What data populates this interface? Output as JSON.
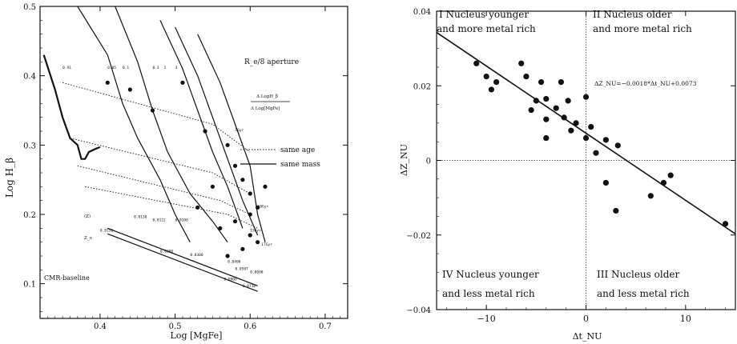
{
  "left_panel": {
    "ylabel": "Log H_β",
    "xlabel": "Log [MgFe]",
    "aperture_label": "R_e/8 aperture",
    "slope_label_top": "Δ LogH_β",
    "slope_label_bottom": "Δ Log[MgFe]",
    "legend": [
      {
        "label": "same age",
        "style": "dotted"
      },
      {
        "label": "same mass",
        "style": "solid"
      }
    ],
    "baseline_label": "CMR-baseline",
    "z_tag": "(Z)",
    "z_symbol": "Z_o",
    "annotations": [
      "0.91",
      "0.05",
      "0.1",
      "0.3",
      "1",
      "3",
      "5Gyr",
      "10Gyr",
      "17Gyr",
      "15Gyr",
      "0.0130",
      "0.0122",
      "0.0150",
      "0.0190",
      "0.0200",
      "0.0300",
      "0.0400",
      "0.0507",
      "0.0600",
      "0.0710",
      "0.0900"
    ]
  },
  "right_panel": {
    "ylabel": "ΔZ_NU",
    "xlabel": "Δt_NU",
    "quadrants": {
      "q1_line1": "I Nucleus younger",
      "q1_line2": "and more metal rich",
      "q2_line1": "II Nucleus older",
      "q2_line2": "and more metal rich",
      "q3_line1": "III Nucleus older",
      "q3_line2": "and less metal rich",
      "q4_line1": "IV Nucleus younger",
      "q4_line2": "and less metal rich"
    },
    "fit_equation": "ΔZ_NU=−0.0018*Δt_NU+0.0073"
  },
  "chart_data": [
    {
      "type": "line",
      "xlabel": "Log [MgFe]",
      "ylabel": "Log H_β",
      "xlim": [
        0.32,
        0.73
      ],
      "ylim": [
        0.05,
        0.5
      ],
      "x_ticks": [
        0.4,
        0.5,
        0.6,
        0.7
      ],
      "y_ticks": [
        0.1,
        0.2,
        0.3,
        0.4,
        0.5
      ],
      "x_tick_labels": [
        "0.4",
        "0.5",
        "0.6",
        "0.7"
      ],
      "y_tick_labels": [
        "0.1",
        "0.2",
        "0.3",
        "0.4",
        "0.5"
      ],
      "grid": false,
      "legend_position": "right",
      "series": [
        {
          "name": "same mass",
          "style": "solid",
          "points": [
            [
              0.37,
              0.5
            ],
            [
              0.41,
              0.43
            ],
            [
              0.43,
              0.36
            ],
            [
              0.45,
              0.31
            ],
            [
              0.48,
              0.25
            ],
            [
              0.5,
              0.2
            ],
            [
              0.52,
              0.16
            ]
          ]
        },
        {
          "name": "same mass",
          "style": "solid",
          "points": [
            [
              0.42,
              0.5
            ],
            [
              0.45,
              0.42
            ],
            [
              0.47,
              0.35
            ],
            [
              0.49,
              0.29
            ],
            [
              0.52,
              0.23
            ],
            [
              0.55,
              0.19
            ],
            [
              0.57,
              0.16
            ]
          ]
        },
        {
          "name": "same mass",
          "style": "solid",
          "points": [
            [
              0.48,
              0.48
            ],
            [
              0.51,
              0.41
            ],
            [
              0.53,
              0.35
            ],
            [
              0.55,
              0.29
            ],
            [
              0.57,
              0.24
            ],
            [
              0.59,
              0.18
            ]
          ]
        },
        {
          "name": "same mass",
          "style": "solid",
          "points": [
            [
              0.5,
              0.47
            ],
            [
              0.53,
              0.4
            ],
            [
              0.55,
              0.34
            ],
            [
              0.57,
              0.28
            ],
            [
              0.59,
              0.22
            ],
            [
              0.61,
              0.17
            ]
          ]
        },
        {
          "name": "same mass",
          "style": "solid",
          "points": [
            [
              0.53,
              0.46
            ],
            [
              0.56,
              0.39
            ],
            [
              0.58,
              0.33
            ],
            [
              0.6,
              0.27
            ],
            [
              0.61,
              0.2
            ],
            [
              0.62,
              0.16
            ]
          ]
        },
        {
          "name": "same age",
          "style": "dotted",
          "points": [
            [
              0.35,
              0.39
            ],
            [
              0.55,
              0.33
            ],
            [
              0.6,
              0.29
            ]
          ]
        },
        {
          "name": "same age",
          "style": "dotted",
          "points": [
            [
              0.36,
              0.31
            ],
            [
              0.55,
              0.26
            ],
            [
              0.6,
              0.23
            ]
          ]
        },
        {
          "name": "same age",
          "style": "dotted",
          "points": [
            [
              0.37,
              0.27
            ],
            [
              0.56,
              0.22
            ],
            [
              0.6,
              0.2
            ]
          ]
        },
        {
          "name": "same age",
          "style": "dotted",
          "points": [
            [
              0.38,
              0.24
            ],
            [
              0.57,
              0.2
            ],
            [
              0.61,
              0.18
            ]
          ]
        },
        {
          "name": "CMR-baseline",
          "style": "solid",
          "points": [
            [
              0.41,
              0.18
            ],
            [
              0.61,
              0.097
            ]
          ]
        },
        {
          "name": "CMR-baseline",
          "style": "solid",
          "points": [
            [
              0.41,
              0.172
            ],
            [
              0.61,
              0.089
            ]
          ]
        },
        {
          "name": "track",
          "style": "thick",
          "points": [
            [
              0.325,
              0.43
            ],
            [
              0.34,
              0.38
            ],
            [
              0.35,
              0.34
            ],
            [
              0.36,
              0.31
            ],
            [
              0.37,
              0.3
            ],
            [
              0.375,
              0.28
            ],
            [
              0.38,
              0.28
            ],
            [
              0.385,
              0.29
            ],
            [
              0.395,
              0.295
            ],
            [
              0.4,
              0.297
            ]
          ]
        }
      ],
      "points": [
        [
          0.41,
          0.39
        ],
        [
          0.44,
          0.38
        ],
        [
          0.47,
          0.35
        ],
        [
          0.51,
          0.39
        ],
        [
          0.54,
          0.32
        ],
        [
          0.57,
          0.3
        ],
        [
          0.58,
          0.27
        ],
        [
          0.59,
          0.25
        ],
        [
          0.6,
          0.23
        ],
        [
          0.61,
          0.21
        ],
        [
          0.58,
          0.19
        ],
        [
          0.6,
          0.17
        ],
        [
          0.59,
          0.15
        ],
        [
          0.57,
          0.14
        ],
        [
          0.55,
          0.24
        ],
        [
          0.53,
          0.21
        ],
        [
          0.56,
          0.18
        ],
        [
          0.61,
          0.16
        ],
        [
          0.6,
          0.2
        ],
        [
          0.62,
          0.24
        ]
      ]
    },
    {
      "type": "scatter",
      "xlabel": "Δt_NU",
      "ylabel": "ΔZ_NU",
      "xlim": [
        -15,
        15
      ],
      "ylim": [
        -0.04,
        0.04
      ],
      "x_ticks": [
        -10,
        0,
        10
      ],
      "y_ticks": [
        -0.04,
        -0.02,
        0,
        0.02,
        0.04
      ],
      "x_tick_labels": [
        "−10",
        "0",
        "10"
      ],
      "y_tick_labels": [
        "−0.04",
        "−0.02",
        "0",
        "0.02",
        "0.04"
      ],
      "grid": false,
      "points": [
        [
          -11,
          0.026
        ],
        [
          -10,
          0.0225
        ],
        [
          -9.5,
          0.019
        ],
        [
          -9,
          0.021
        ],
        [
          -6.5,
          0.026
        ],
        [
          -6,
          0.0225
        ],
        [
          -5.5,
          0.0135
        ],
        [
          -5,
          0.016
        ],
        [
          -4.5,
          0.021
        ],
        [
          -4,
          0.0165
        ],
        [
          -4,
          0.011
        ],
        [
          -4,
          0.006
        ],
        [
          -3,
          0.014
        ],
        [
          -2.5,
          0.021
        ],
        [
          -2.2,
          0.0115
        ],
        [
          -1.8,
          0.016
        ],
        [
          -1.5,
          0.008
        ],
        [
          -1,
          0.01
        ],
        [
          0,
          0.017
        ],
        [
          0,
          0.006
        ],
        [
          0.5,
          0.009
        ],
        [
          1,
          0.002
        ],
        [
          2,
          -0.006
        ],
        [
          2,
          0.0055
        ],
        [
          3,
          -0.0135
        ],
        [
          3.2,
          0.004
        ],
        [
          6.5,
          -0.0095
        ],
        [
          7.8,
          -0.006
        ],
        [
          8.5,
          -0.004
        ],
        [
          14,
          -0.017
        ]
      ],
      "fit_line": {
        "slope": -0.0018,
        "intercept": 0.0073
      },
      "reference_lines": {
        "x": 0,
        "y": 0
      }
    }
  ]
}
